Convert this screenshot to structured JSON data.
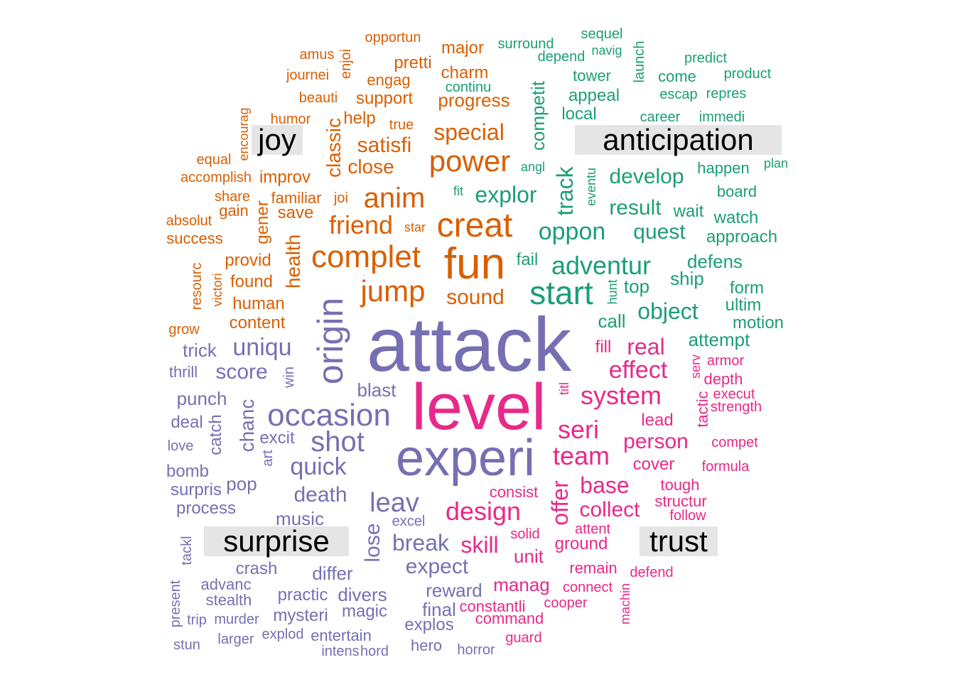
{
  "colors": {
    "joy": "#d95f02",
    "anticipation": "#1b9e77",
    "surprise": "#7570b3",
    "trust": "#e7298a"
  },
  "labels": {
    "joy": "joy",
    "anticipation": "anticipation",
    "surprise": "surprise",
    "trust": "trust"
  },
  "words": [
    {
      "t": "attack",
      "g": "surprise"
    },
    {
      "t": "level",
      "g": "trust"
    },
    {
      "t": "experi",
      "g": "surprise"
    },
    {
      "t": "origin",
      "g": "surprise",
      "v": 1
    },
    {
      "t": "occasion",
      "g": "surprise"
    },
    {
      "t": "fun",
      "g": "joy"
    },
    {
      "t": "complet",
      "g": "joy"
    },
    {
      "t": "creat",
      "g": "joy"
    },
    {
      "t": "start",
      "g": "anticipation"
    },
    {
      "t": "jump",
      "g": "joy"
    },
    {
      "t": "power",
      "g": "joy"
    },
    {
      "t": "anim",
      "g": "joy"
    },
    {
      "t": "adventur",
      "g": "anticipation"
    },
    {
      "t": "shot",
      "g": "surprise"
    },
    {
      "t": "system",
      "g": "trust"
    },
    {
      "t": "seri",
      "g": "trust"
    },
    {
      "t": "leav",
      "g": "surprise"
    },
    {
      "t": "team",
      "g": "trust"
    },
    {
      "t": "design",
      "g": "trust"
    },
    {
      "t": "friend",
      "g": "joy"
    },
    {
      "t": "oppon",
      "g": "anticipation"
    },
    {
      "t": "effect",
      "g": "trust"
    },
    {
      "t": "quick",
      "g": "surprise"
    },
    {
      "t": "uniqu",
      "g": "surprise"
    },
    {
      "t": "object",
      "g": "anticipation"
    },
    {
      "t": "special",
      "g": "joy"
    },
    {
      "t": "explor",
      "g": "anticipation"
    },
    {
      "t": "develop",
      "g": "anticipation"
    },
    {
      "t": "quest",
      "g": "anticipation"
    },
    {
      "t": "result",
      "g": "anticipation"
    },
    {
      "t": "sound",
      "g": "joy"
    },
    {
      "t": "score",
      "g": "surprise"
    },
    {
      "t": "death",
      "g": "surprise"
    },
    {
      "t": "break",
      "g": "surprise"
    },
    {
      "t": "base",
      "g": "trust"
    },
    {
      "t": "collect",
      "g": "trust"
    },
    {
      "t": "skill",
      "g": "trust"
    },
    {
      "t": "real",
      "g": "trust"
    },
    {
      "t": "person",
      "g": "trust"
    },
    {
      "t": "satisfi",
      "g": "joy"
    },
    {
      "t": "close",
      "g": "joy"
    },
    {
      "t": "expect",
      "g": "surprise"
    },
    {
      "t": "track",
      "g": "anticipation",
      "v": 1
    },
    {
      "t": "lose",
      "g": "surprise",
      "v": 1
    },
    {
      "t": "offer",
      "g": "trust",
      "v": 1
    },
    {
      "t": "chanc",
      "g": "surprise",
      "v": 1
    },
    {
      "t": "blast",
      "g": "surprise"
    },
    {
      "t": "music",
      "g": "surprise"
    },
    {
      "t": "reward",
      "g": "surprise"
    },
    {
      "t": "differ",
      "g": "surprise"
    },
    {
      "t": "divers",
      "g": "surprise"
    },
    {
      "t": "magic",
      "g": "surprise"
    },
    {
      "t": "mysteri",
      "g": "surprise"
    },
    {
      "t": "final",
      "g": "surprise"
    },
    {
      "t": "explos",
      "g": "surprise"
    },
    {
      "t": "unit",
      "g": "trust"
    },
    {
      "t": "manag",
      "g": "trust"
    },
    {
      "t": "progress",
      "g": "joy"
    },
    {
      "t": "support",
      "g": "joy"
    },
    {
      "t": "charm",
      "g": "joy"
    },
    {
      "t": "major",
      "g": "joy"
    },
    {
      "t": "pretti",
      "g": "joy"
    },
    {
      "t": "engag",
      "g": "joy"
    },
    {
      "t": "help",
      "g": "joy"
    },
    {
      "t": "save",
      "g": "joy"
    },
    {
      "t": "human",
      "g": "joy"
    },
    {
      "t": "content",
      "g": "joy"
    },
    {
      "t": "found",
      "g": "joy"
    },
    {
      "t": "provid",
      "g": "joy"
    },
    {
      "t": "improv",
      "g": "joy"
    },
    {
      "t": "familiar",
      "g": "joy"
    },
    {
      "t": "joi",
      "g": "joy"
    },
    {
      "t": "gain",
      "g": "joy"
    },
    {
      "t": "success",
      "g": "joy"
    },
    {
      "t": "health",
      "g": "joy",
      "v": 1
    },
    {
      "t": "classic",
      "g": "joy",
      "v": 1
    },
    {
      "t": "gener",
      "g": "joy",
      "v": 1
    },
    {
      "t": "star",
      "g": "joy"
    },
    {
      "t": "true",
      "g": "joy"
    },
    {
      "t": "humor",
      "g": "joy"
    },
    {
      "t": "beauti",
      "g": "joy"
    },
    {
      "t": "journei",
      "g": "joy"
    },
    {
      "t": "amus",
      "g": "joy"
    },
    {
      "t": "opportun",
      "g": "joy"
    },
    {
      "t": "enjoi",
      "g": "joy",
      "v": 1
    },
    {
      "t": "encourag",
      "g": "joy",
      "v": 1
    },
    {
      "t": "equal",
      "g": "joy"
    },
    {
      "t": "accomplish",
      "g": "joy"
    },
    {
      "t": "share",
      "g": "joy"
    },
    {
      "t": "absolut",
      "g": "joy"
    },
    {
      "t": "resourc",
      "g": "joy",
      "v": 1
    },
    {
      "t": "victori",
      "g": "joy",
      "v": 1
    },
    {
      "t": "grow",
      "g": "joy"
    },
    {
      "t": "continu",
      "g": "anticipation"
    },
    {
      "t": "competit",
      "g": "anticipation",
      "v": 1
    },
    {
      "t": "surround",
      "g": "anticipation"
    },
    {
      "t": "depend",
      "g": "anticipation"
    },
    {
      "t": "sequel",
      "g": "anticipation"
    },
    {
      "t": "navig",
      "g": "anticipation"
    },
    {
      "t": "launch",
      "g": "anticipation",
      "v": 1
    },
    {
      "t": "predict",
      "g": "anticipation"
    },
    {
      "t": "product",
      "g": "anticipation"
    },
    {
      "t": "tower",
      "g": "anticipation"
    },
    {
      "t": "come",
      "g": "anticipation"
    },
    {
      "t": "appeal",
      "g": "anticipation"
    },
    {
      "t": "escap",
      "g": "anticipation"
    },
    {
      "t": "repres",
      "g": "anticipation"
    },
    {
      "t": "local",
      "g": "anticipation"
    },
    {
      "t": "career",
      "g": "anticipation"
    },
    {
      "t": "immedi",
      "g": "anticipation"
    },
    {
      "t": "angl",
      "g": "anticipation"
    },
    {
      "t": "eventu",
      "g": "anticipation",
      "v": 1
    },
    {
      "t": "happen",
      "g": "anticipation"
    },
    {
      "t": "plan",
      "g": "anticipation"
    },
    {
      "t": "fit",
      "g": "anticipation"
    },
    {
      "t": "board",
      "g": "anticipation"
    },
    {
      "t": "wait",
      "g": "anticipation"
    },
    {
      "t": "watch",
      "g": "anticipation"
    },
    {
      "t": "approach",
      "g": "anticipation"
    },
    {
      "t": "fail",
      "g": "anticipation"
    },
    {
      "t": "defens",
      "g": "anticipation"
    },
    {
      "t": "ship",
      "g": "anticipation"
    },
    {
      "t": "top",
      "g": "anticipation"
    },
    {
      "t": "hunt",
      "g": "anticipation",
      "v": 1
    },
    {
      "t": "form",
      "g": "anticipation"
    },
    {
      "t": "ultim",
      "g": "anticipation"
    },
    {
      "t": "call",
      "g": "anticipation"
    },
    {
      "t": "motion",
      "g": "anticipation"
    },
    {
      "t": "attempt",
      "g": "anticipation"
    },
    {
      "t": "fill",
      "g": "trust"
    },
    {
      "t": "serv",
      "g": "trust",
      "v": 1
    },
    {
      "t": "armor",
      "g": "trust"
    },
    {
      "t": "depth",
      "g": "trust"
    },
    {
      "t": "titl",
      "g": "trust",
      "v": 1
    },
    {
      "t": "execut",
      "g": "trust"
    },
    {
      "t": "tactic",
      "g": "trust",
      "v": 1
    },
    {
      "t": "strength",
      "g": "trust"
    },
    {
      "t": "lead",
      "g": "trust"
    },
    {
      "t": "compet",
      "g": "trust"
    },
    {
      "t": "cover",
      "g": "trust"
    },
    {
      "t": "formula",
      "g": "trust"
    },
    {
      "t": "consist",
      "g": "trust"
    },
    {
      "t": "tough",
      "g": "trust"
    },
    {
      "t": "structur",
      "g": "trust"
    },
    {
      "t": "follow",
      "g": "trust"
    },
    {
      "t": "attent",
      "g": "trust"
    },
    {
      "t": "solid",
      "g": "trust"
    },
    {
      "t": "ground",
      "g": "trust"
    },
    {
      "t": "remain",
      "g": "trust"
    },
    {
      "t": "defend",
      "g": "trust"
    },
    {
      "t": "connect",
      "g": "trust"
    },
    {
      "t": "machin",
      "g": "trust",
      "v": 1
    },
    {
      "t": "cooper",
      "g": "trust"
    },
    {
      "t": "constantli",
      "g": "trust"
    },
    {
      "t": "command",
      "g": "trust"
    },
    {
      "t": "guard",
      "g": "trust"
    },
    {
      "t": "trick",
      "g": "surprise"
    },
    {
      "t": "thrill",
      "g": "surprise"
    },
    {
      "t": "win",
      "g": "surprise",
      "v": 1
    },
    {
      "t": "punch",
      "g": "surprise"
    },
    {
      "t": "deal",
      "g": "surprise"
    },
    {
      "t": "catch",
      "g": "surprise",
      "v": 1
    },
    {
      "t": "love",
      "g": "surprise"
    },
    {
      "t": "excit",
      "g": "surprise"
    },
    {
      "t": "art",
      "g": "surprise",
      "v": 1
    },
    {
      "t": "bomb",
      "g": "surprise"
    },
    {
      "t": "pop",
      "g": "surprise"
    },
    {
      "t": "surpris",
      "g": "surprise"
    },
    {
      "t": "process",
      "g": "surprise"
    },
    {
      "t": "excel",
      "g": "surprise"
    },
    {
      "t": "tackl",
      "g": "surprise",
      "v": 1
    },
    {
      "t": "crash",
      "g": "surprise"
    },
    {
      "t": "advanc",
      "g": "surprise"
    },
    {
      "t": "stealth",
      "g": "surprise"
    },
    {
      "t": "practic",
      "g": "surprise"
    },
    {
      "t": "present",
      "g": "surprise",
      "v": 1
    },
    {
      "t": "trip",
      "g": "surprise"
    },
    {
      "t": "murder",
      "g": "surprise"
    },
    {
      "t": "stun",
      "g": "surprise"
    },
    {
      "t": "larger",
      "g": "surprise"
    },
    {
      "t": "explod",
      "g": "surprise"
    },
    {
      "t": "entertain",
      "g": "surprise"
    },
    {
      "t": "intens",
      "g": "surprise"
    },
    {
      "t": "hord",
      "g": "surprise"
    },
    {
      "t": "hero",
      "g": "surprise"
    },
    {
      "t": "horror",
      "g": "surprise"
    }
  ]
}
